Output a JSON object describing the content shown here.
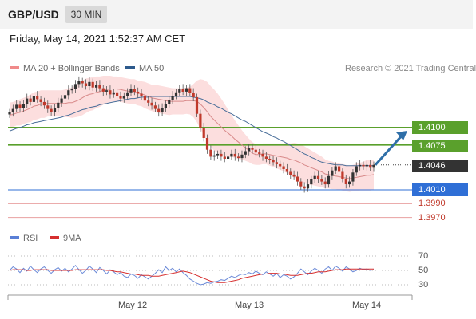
{
  "header": {
    "symbol": "GBP/USD",
    "timeframe": "30 MIN"
  },
  "timestamp": "Friday, May 14, 2021 1:52:37 AM CET",
  "legend": {
    "ma_bollinger": {
      "label": "MA 20 + Bollinger Bands",
      "color": "#f08a8a"
    },
    "ma50": {
      "label": "MA 50",
      "color": "#2d5a8c"
    },
    "rsi": {
      "label": "RSI",
      "color": "#5a7fd6"
    },
    "rsi_ma": {
      "label": "9MA",
      "color": "#d62f2f"
    }
  },
  "copyright": "Research © 2021 Trading Central",
  "price_levels": [
    {
      "value": 1.41,
      "label": "1.4100",
      "type": "resistance",
      "color": "#5aa02c"
    },
    {
      "value": 1.4075,
      "label": "1.4075",
      "type": "resistance",
      "color": "#5aa02c"
    },
    {
      "value": 1.4046,
      "label": "1.4046",
      "type": "last",
      "color": "#333333"
    },
    {
      "value": 1.401,
      "label": "1.4010",
      "type": "pivot",
      "color": "#2f6fd6"
    },
    {
      "value": 1.399,
      "label": "1.3990",
      "type": "support",
      "color": "#c0392b"
    },
    {
      "value": 1.397,
      "label": "1.3970",
      "type": "support",
      "color": "#c0392b"
    }
  ],
  "arrow": {
    "from": 1.4046,
    "to": 1.41,
    "color": "#2f6fa8"
  },
  "chart_data": [
    {
      "type": "candlestick",
      "y_range": [
        1.3965,
        1.4205
      ],
      "x_ticks": [
        "May 12",
        "May 13",
        "May 14"
      ],
      "price": [
        1.4122,
        1.4127,
        1.4133,
        1.4128,
        1.4134,
        1.4142,
        1.4137,
        1.4146,
        1.4141,
        1.4137,
        1.4132,
        1.4127,
        1.4122,
        1.4128,
        1.4136,
        1.4142,
        1.4147,
        1.4154,
        1.4156,
        1.4163,
        1.4167,
        1.4164,
        1.416,
        1.4166,
        1.4158,
        1.4162,
        1.4157,
        1.4152,
        1.4154,
        1.4148,
        1.4151,
        1.4145,
        1.4142,
        1.4146,
        1.4151,
        1.4156,
        1.4152,
        1.4149,
        1.4145,
        1.4139,
        1.4136,
        1.4132,
        1.4127,
        1.4122,
        1.4128,
        1.4134,
        1.414,
        1.4146,
        1.4151,
        1.4156,
        1.4152,
        1.4157,
        1.415,
        1.4144,
        1.412,
        1.41,
        1.4085,
        1.4068,
        1.4058,
        1.406,
        1.4062,
        1.4058,
        1.4055,
        1.4058,
        1.4062,
        1.4058,
        1.4056,
        1.4061,
        1.4066,
        1.4071,
        1.4068,
        1.4064,
        1.4062,
        1.4058,
        1.4055,
        1.4053,
        1.405,
        1.4047,
        1.4044,
        1.404,
        1.4036,
        1.4032,
        1.4029,
        1.4022,
        1.4015,
        1.4012,
        1.4018,
        1.4025,
        1.403,
        1.4026,
        1.4022,
        1.4018,
        1.403,
        1.4038,
        1.4044,
        1.4036,
        1.4026,
        1.4018,
        1.4022,
        1.4035,
        1.4044,
        1.4046,
        1.4044,
        1.4046,
        1.4042,
        1.4046
      ],
      "ma20": [
        1.4118,
        1.4119,
        1.4121,
        1.4122,
        1.4124,
        1.4126,
        1.4128,
        1.4131,
        1.4132,
        1.4134,
        1.4134,
        1.4135,
        1.4135,
        1.4135,
        1.4135,
        1.4135,
        1.4135,
        1.4136,
        1.4136,
        1.4138,
        1.414,
        1.4143,
        1.4146,
        1.4148,
        1.4149,
        1.4151,
        1.4152,
        1.4154,
        1.4155,
        1.4156,
        1.4156,
        1.4156,
        1.4155,
        1.4154,
        1.4153,
        1.4152,
        1.4152,
        1.415,
        1.4149,
        1.4147,
        1.4145,
        1.4143,
        1.4142,
        1.4141,
        1.414,
        1.4139,
        1.4138,
        1.4138,
        1.4138,
        1.4138,
        1.4138,
        1.4139,
        1.4139,
        1.4139,
        1.4138,
        1.4134,
        1.4129,
        1.4123,
        1.4116,
        1.4111,
        1.4106,
        1.4101,
        1.4096,
        1.4092,
        1.4088,
        1.4083,
        1.4079,
        1.4075,
        1.4071,
        1.4067,
        1.4063,
        1.4061,
        1.4061,
        1.4062,
        1.4062,
        1.4061,
        1.406,
        1.4059,
        1.4058,
        1.4057,
        1.4056,
        1.4054,
        1.4053,
        1.4051,
        1.4049,
        1.4046,
        1.4044,
        1.4042,
        1.404,
        1.4038,
        1.4036,
        1.4033,
        1.4032,
        1.4031,
        1.403,
        1.4029,
        1.4028,
        1.4027,
        1.4026,
        1.4027,
        1.4028,
        1.4029,
        1.403,
        1.4031,
        1.4031,
        1.4032
      ],
      "ma50": [
        1.4095,
        1.4097,
        1.4099,
        1.41,
        1.4102,
        1.4104,
        1.4105,
        1.4107,
        1.4108,
        1.4109,
        1.411,
        1.4111,
        1.4112,
        1.4113,
        1.4114,
        1.4115,
        1.4117,
        1.4118,
        1.412,
        1.4122,
        1.4124,
        1.4126,
        1.4127,
        1.4129,
        1.413,
        1.4131,
        1.4133,
        1.4134,
        1.4135,
        1.4136,
        1.4137,
        1.4138,
        1.4139,
        1.414,
        1.4141,
        1.4142,
        1.4142,
        1.4143,
        1.4144,
        1.4144,
        1.4144,
        1.4145,
        1.4145,
        1.4145,
        1.4145,
        1.4145,
        1.4145,
        1.4145,
        1.4145,
        1.4145,
        1.4145,
        1.4145,
        1.4145,
        1.4144,
        1.4143,
        1.4142,
        1.414,
        1.4137,
        1.4135,
        1.4133,
        1.413,
        1.4128,
        1.4125,
        1.4122,
        1.412,
        1.4117,
        1.4114,
        1.4111,
        1.4109,
        1.4106,
        1.4103,
        1.41,
        1.4097,
        1.4094,
        1.4092,
        1.409,
        1.4087,
        1.4085,
        1.4082,
        1.408,
        1.4077,
        1.4074,
        1.4071,
        1.4068,
        1.4065,
        1.4062,
        1.406,
        1.4057,
        1.4055,
        1.4052,
        1.405,
        1.4049,
        1.4048,
        1.4047,
        1.4046,
        1.4046,
        1.4046,
        1.4045,
        1.4045,
        1.4045,
        1.4045,
        1.4045,
        1.4045,
        1.4045,
        1.4045,
        1.4045
      ],
      "bb_width": [
        0.0018,
        0.0018,
        0.0018,
        0.0019,
        0.0019,
        0.0019,
        0.002,
        0.002,
        0.002,
        0.002,
        0.002,
        0.0019,
        0.0019,
        0.0019,
        0.0019,
        0.0019,
        0.002,
        0.0021,
        0.0022,
        0.0023,
        0.0024,
        0.0025,
        0.0025,
        0.0024,
        0.0024,
        0.0023,
        0.0022,
        0.0021,
        0.002,
        0.0019,
        0.0018,
        0.0018,
        0.0018,
        0.0018,
        0.0018,
        0.0018,
        0.0018,
        0.0018,
        0.0018,
        0.0019,
        0.0019,
        0.0019,
        0.002,
        0.002,
        0.002,
        0.002,
        0.002,
        0.0019,
        0.0019,
        0.0019,
        0.0019,
        0.0019,
        0.002,
        0.0024,
        0.003,
        0.0036,
        0.004,
        0.0043,
        0.0044,
        0.0044,
        0.0043,
        0.0041,
        0.0038,
        0.0034,
        0.003,
        0.0027,
        0.0024,
        0.0021,
        0.0019,
        0.0017,
        0.0016,
        0.0015,
        0.0015,
        0.0015,
        0.0015,
        0.0016,
        0.0017,
        0.0018,
        0.0019,
        0.002,
        0.0022,
        0.0023,
        0.0025,
        0.0026,
        0.0027,
        0.0027,
        0.0026,
        0.0025,
        0.0024,
        0.0023,
        0.0022,
        0.0021,
        0.002,
        0.002,
        0.0019,
        0.0019,
        0.0019,
        0.0019,
        0.0019,
        0.0019,
        0.002,
        0.002,
        0.0021,
        0.0022,
        0.0022,
        0.0022
      ]
    },
    {
      "type": "line",
      "name": "RSI",
      "y_range": [
        20,
        80
      ],
      "y_ticks": [
        30,
        50,
        70
      ],
      "rsi": [
        50,
        55,
        52,
        47,
        53,
        49,
        56,
        51,
        47,
        52,
        55,
        50,
        46,
        51,
        54,
        49,
        53,
        48,
        52,
        57,
        51,
        46,
        50,
        56,
        52,
        47,
        54,
        50,
        45,
        51,
        48,
        44,
        47,
        42,
        40,
        45,
        43,
        39,
        44,
        41,
        38,
        42,
        46,
        51,
        47,
        55,
        50,
        53,
        48,
        52,
        47,
        43,
        38,
        35,
        32,
        30,
        31,
        33,
        32,
        34,
        35,
        37,
        36,
        39,
        42,
        40,
        43,
        45,
        44,
        47,
        45,
        49,
        46,
        44,
        48,
        45,
        42,
        46,
        40,
        44,
        42,
        38,
        41,
        46,
        52,
        48,
        44,
        49,
        53,
        50,
        46,
        52,
        55,
        50,
        56,
        53,
        49,
        55,
        52,
        48,
        50,
        53,
        51,
        52,
        50,
        51
      ],
      "rsi_ma": [
        50,
        51,
        51,
        51,
        51,
        50,
        50,
        51,
        51,
        51,
        51,
        51,
        50,
        50,
        50,
        50,
        50,
        50,
        50,
        51,
        51,
        51,
        51,
        51,
        51,
        51,
        51,
        51,
        50,
        50,
        49,
        48,
        48,
        47,
        46,
        45,
        45,
        44,
        43,
        43,
        43,
        42,
        42,
        42,
        43,
        44,
        45,
        46,
        47,
        48,
        49,
        48,
        47,
        45,
        43,
        41,
        39,
        37,
        35,
        34,
        33,
        33,
        33,
        34,
        35,
        36,
        37,
        39,
        40,
        41,
        42,
        43,
        44,
        45,
        45,
        46,
        46,
        46,
        45,
        45,
        44,
        43,
        43,
        43,
        44,
        45,
        46,
        46,
        47,
        48,
        48,
        48,
        49,
        50,
        51,
        51,
        51,
        52,
        52,
        52,
        52,
        52,
        52,
        52,
        52,
        52
      ]
    }
  ]
}
